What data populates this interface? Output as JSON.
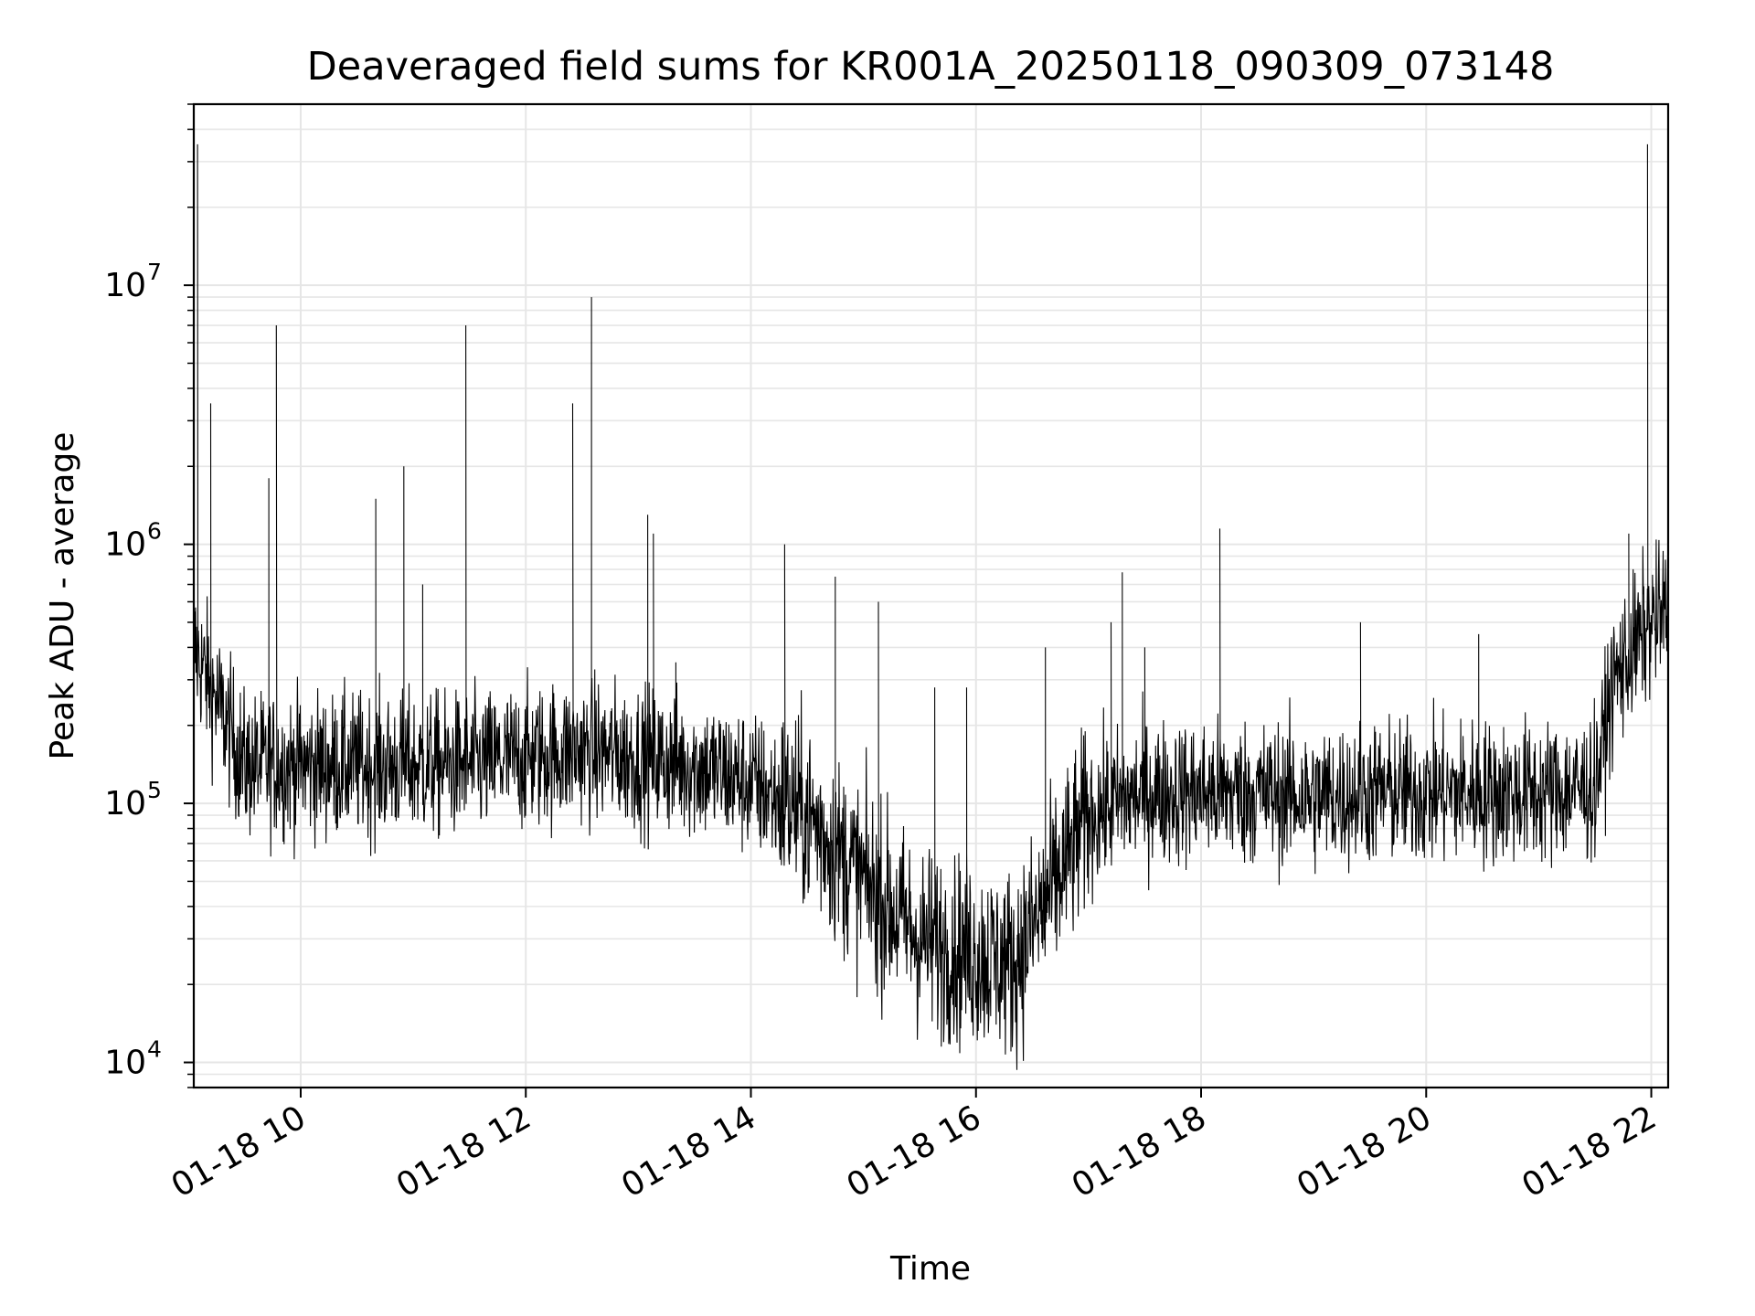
{
  "chart_data": {
    "type": "line",
    "title": "Deaveraged field sums for KR001A_20250118_090309_073148",
    "xlabel": "Time",
    "ylabel": "Peak ADU - average",
    "yscale": "log",
    "ylim": [
      8000,
      50000000
    ],
    "xlim": [
      "2025-01-18 09:03",
      "2025-01-18 22:09"
    ],
    "grid": true,
    "line_color": "#000000",
    "grid_color": "#e6e6e6",
    "x_ticks": [
      "01-18 10",
      "01-18 12",
      "01-18 14",
      "01-18 16",
      "01-18 18",
      "01-18 20",
      "01-18 22"
    ],
    "y_ticks": [
      {
        "base": "10",
        "exp": "4",
        "value": 10000
      },
      {
        "base": "10",
        "exp": "5",
        "value": 100000
      },
      {
        "base": "10",
        "exp": "6",
        "value": 1000000
      },
      {
        "base": "10",
        "exp": "7",
        "value": 10000000
      }
    ],
    "series": [
      {
        "x": [
          "2025-01-18 09:03",
          "2025-01-18 09:15",
          "2025-01-18 09:30",
          "2025-01-18 09:45",
          "2025-01-18 10:00",
          "2025-01-18 10:30",
          "2025-01-18 11:00",
          "2025-01-18 11:30",
          "2025-01-18 12:00",
          "2025-01-18 12:30",
          "2025-01-18 13:00",
          "2025-01-18 13:30",
          "2025-01-18 14:00",
          "2025-01-18 14:30",
          "2025-01-18 15:00",
          "2025-01-18 15:30",
          "2025-01-18 16:00",
          "2025-01-18 16:20",
          "2025-01-18 16:40",
          "2025-01-18 17:00",
          "2025-01-18 17:30",
          "2025-01-18 18:00",
          "2025-01-18 18:30",
          "2025-01-18 19:00",
          "2025-01-18 19:30",
          "2025-01-18 20:00",
          "2025-01-18 20:30",
          "2025-01-18 21:00",
          "2025-01-18 21:30",
          "2025-01-18 21:40",
          "2025-01-18 22:00",
          "2025-01-18 22:09"
        ],
        "y": [
          400000,
          250000,
          140000,
          140000,
          140000,
          140000,
          140000,
          140000,
          150000,
          160000,
          150000,
          140000,
          120000,
          90000,
          50000,
          30000,
          26000,
          24000,
          45000,
          90000,
          110000,
          110000,
          110000,
          105000,
          110000,
          110000,
          110000,
          110000,
          115000,
          300000,
          500000,
          550000
        ]
      }
    ],
    "spikes": [
      {
        "x": "2025-01-18 09:05",
        "y": 35000000
      },
      {
        "x": "2025-01-18 09:12",
        "y": 3500000
      },
      {
        "x": "2025-01-18 09:43",
        "y": 1800000
      },
      {
        "x": "2025-01-18 09:47",
        "y": 7000000
      },
      {
        "x": "2025-01-18 10:40",
        "y": 1500000
      },
      {
        "x": "2025-01-18 10:55",
        "y": 2000000
      },
      {
        "x": "2025-01-18 11:05",
        "y": 700000
      },
      {
        "x": "2025-01-18 11:28",
        "y": 7000000
      },
      {
        "x": "2025-01-18 12:25",
        "y": 3500000
      },
      {
        "x": "2025-01-18 12:35",
        "y": 9000000
      },
      {
        "x": "2025-01-18 13:05",
        "y": 1300000
      },
      {
        "x": "2025-01-18 13:08",
        "y": 1100000
      },
      {
        "x": "2025-01-18 13:20",
        "y": 350000
      },
      {
        "x": "2025-01-18 14:18",
        "y": 1000000
      },
      {
        "x": "2025-01-18 14:45",
        "y": 750000
      },
      {
        "x": "2025-01-18 15:08",
        "y": 600000
      },
      {
        "x": "2025-01-18 15:38",
        "y": 280000
      },
      {
        "x": "2025-01-18 15:55",
        "y": 280000
      },
      {
        "x": "2025-01-18 16:37",
        "y": 400000
      },
      {
        "x": "2025-01-18 17:12",
        "y": 500000
      },
      {
        "x": "2025-01-18 17:18",
        "y": 780000
      },
      {
        "x": "2025-01-18 17:30",
        "y": 400000
      },
      {
        "x": "2025-01-18 18:10",
        "y": 1150000
      },
      {
        "x": "2025-01-18 19:25",
        "y": 500000
      },
      {
        "x": "2025-01-18 20:28",
        "y": 450000
      },
      {
        "x": "2025-01-18 21:48",
        "y": 1100000
      },
      {
        "x": "2025-01-18 21:58",
        "y": 35000000
      }
    ]
  }
}
